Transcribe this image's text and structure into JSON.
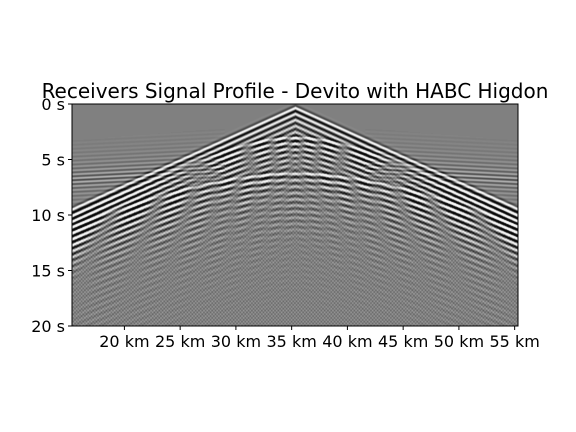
{
  "chart_data": {
    "type": "heatmap",
    "title": "Receivers Signal Profile - Devito with HABC Higdon",
    "xlabel": "",
    "ylabel": "",
    "xlim": [
      15.3,
      55.3
    ],
    "ylim": [
      0,
      20
    ],
    "x_ticks": [
      {
        "value": 20,
        "label": "20 km"
      },
      {
        "value": 25,
        "label": "25 km"
      },
      {
        "value": 30,
        "label": "30 km"
      },
      {
        "value": 35,
        "label": "35 km"
      },
      {
        "value": 40,
        "label": "40 km"
      },
      {
        "value": 45,
        "label": "45 km"
      },
      {
        "value": 50,
        "label": "50 km"
      },
      {
        "value": 55,
        "label": "55 km"
      }
    ],
    "y_ticks": [
      {
        "value": 0,
        "label": "0 s"
      },
      {
        "value": 5,
        "label": "5 s"
      },
      {
        "value": 10,
        "label": "10 s"
      },
      {
        "value": 15,
        "label": "15 s"
      },
      {
        "value": 20,
        "label": "20 s"
      }
    ],
    "source_x": 35.3,
    "colormap": "gray",
    "background_color": "#808080",
    "grid": false,
    "legend": "none"
  }
}
